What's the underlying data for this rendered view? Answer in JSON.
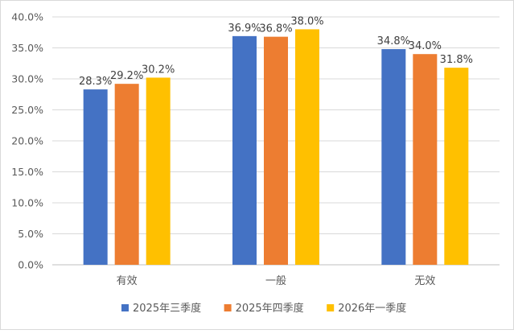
{
  "chart_data": {
    "type": "bar",
    "title": "",
    "xlabel": "",
    "ylabel": "",
    "categories": [
      "有效",
      "一般",
      "无效"
    ],
    "series": [
      {
        "name": "2025年三季度",
        "color": "#4472c4",
        "values": [
          28.3,
          36.9,
          34.8
        ],
        "labels": [
          "28.3%",
          "36.9%",
          "34.8%"
        ]
      },
      {
        "name": "2025年四季度",
        "color": "#ed7d31",
        "values": [
          29.2,
          36.8,
          34.0
        ],
        "labels": [
          "29.2%",
          "36.8%",
          "34.0%"
        ]
      },
      {
        "name": "2026年一季度",
        "color": "#ffc000",
        "values": [
          30.2,
          38.0,
          31.8
        ],
        "labels": [
          "30.2%",
          "38.0%",
          "31.8%"
        ]
      }
    ],
    "ylim": [
      0,
      40
    ],
    "yticks": [
      "0.0%",
      "5.0%",
      "10.0%",
      "15.0%",
      "20.0%",
      "25.0%",
      "30.0%",
      "35.0%",
      "40.0%"
    ],
    "grid": true,
    "legend": "bottom"
  }
}
